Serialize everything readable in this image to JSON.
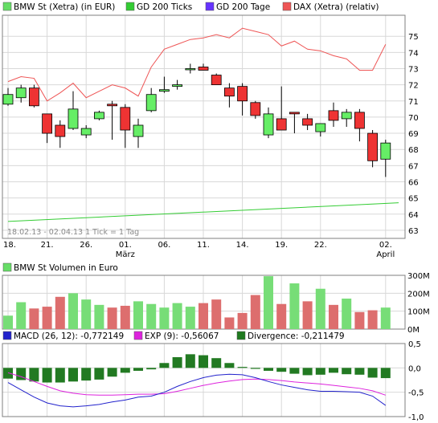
{
  "legend_top": [
    {
      "label": "BMW St (Xetra) (in EUR)",
      "color": "#66dd66"
    },
    {
      "label": "GD 200 Ticks",
      "color": "#33cc33"
    },
    {
      "label": "GD 200 Tage",
      "color": "#6633ff"
    },
    {
      "label": "DAX (Xetra) (relativ)",
      "color": "#ee5555"
    }
  ],
  "legend_volume": {
    "label": "BMW St Volumen in Euro",
    "color": "#66dd66"
  },
  "legend_macd": [
    {
      "label": "MACD (26, 12): -0,772149",
      "color": "#2222cc"
    },
    {
      "label": "EXP (9): -0,56067",
      "color": "#dd22dd"
    },
    {
      "label": "Divergence: -0,211479",
      "color": "#1f7a1f"
    }
  ],
  "range_note": "18.02.13 - 02.04.13   1 Tick = 1 Tag",
  "colors": {
    "up": "#66ee66",
    "down": "#ee3333",
    "volume_up": "#77dd77",
    "volume_down": "#dd6e6e",
    "gd200": "#33cc33",
    "dax": "#ee5555",
    "macd": "#2222cc",
    "exp": "#dd22dd",
    "divergence": "#227a22",
    "grid": "#d8d8d8"
  },
  "chart_data": [
    {
      "type": "candlestick",
      "title": "BMW St (Xetra) (in EUR)",
      "x_tick_labels": [
        {
          "i": 0,
          "label": "18."
        },
        {
          "i": 3,
          "label": "21."
        },
        {
          "i": 6,
          "label": "26."
        },
        {
          "i": 9,
          "label": "01.",
          "sub": "März"
        },
        {
          "i": 12,
          "label": "06."
        },
        {
          "i": 15,
          "label": "11."
        },
        {
          "i": 18,
          "label": "14."
        },
        {
          "i": 21,
          "label": "19."
        },
        {
          "i": 24,
          "label": "22."
        },
        {
          "i": 29,
          "label": "02.",
          "sub": "April"
        }
      ],
      "ylim": [
        62.5,
        76.3
      ],
      "yticks": [
        63,
        64,
        65,
        66,
        67,
        68,
        69,
        70,
        71,
        72,
        73,
        74,
        75
      ],
      "grid": true,
      "candles": [
        {
          "o": 70.8,
          "h": 71.8,
          "l": 70.7,
          "c": 71.4
        },
        {
          "o": 71.2,
          "h": 72.0,
          "l": 70.9,
          "c": 71.8
        },
        {
          "o": 71.8,
          "h": 72.0,
          "l": 70.6,
          "c": 70.7
        },
        {
          "o": 70.2,
          "h": 70.2,
          "l": 68.4,
          "c": 69.0
        },
        {
          "o": 69.5,
          "h": 69.8,
          "l": 68.1,
          "c": 68.8
        },
        {
          "o": 69.3,
          "h": 71.6,
          "l": 69.2,
          "c": 70.5
        },
        {
          "o": 68.9,
          "h": 69.5,
          "l": 68.7,
          "c": 69.3
        },
        {
          "o": 69.9,
          "h": 70.4,
          "l": 69.8,
          "c": 70.3
        },
        {
          "o": 70.8,
          "h": 71.0,
          "l": 68.6,
          "c": 70.7
        },
        {
          "o": 70.6,
          "h": 70.8,
          "l": 68.1,
          "c": 69.2
        },
        {
          "o": 68.8,
          "h": 69.9,
          "l": 68.1,
          "c": 69.5
        },
        {
          "o": 70.4,
          "h": 71.8,
          "l": 70.3,
          "c": 71.4
        },
        {
          "o": 71.6,
          "h": 72.5,
          "l": 71.5,
          "c": 71.7
        },
        {
          "o": 71.9,
          "h": 72.3,
          "l": 71.7,
          "c": 72.0
        },
        {
          "o": 73.0,
          "h": 73.3,
          "l": 72.7,
          "c": 73.0
        },
        {
          "o": 73.1,
          "h": 73.3,
          "l": 72.9,
          "c": 72.9
        },
        {
          "o": 72.6,
          "h": 72.7,
          "l": 72.0,
          "c": 72.0
        },
        {
          "o": 71.8,
          "h": 72.1,
          "l": 70.6,
          "c": 71.3
        },
        {
          "o": 71.9,
          "h": 72.1,
          "l": 70.1,
          "c": 71.0
        },
        {
          "o": 70.9,
          "h": 71.0,
          "l": 69.9,
          "c": 70.1
        },
        {
          "o": 68.9,
          "h": 70.6,
          "l": 68.7,
          "c": 70.2
        },
        {
          "o": 69.9,
          "h": 71.9,
          "l": 69.2,
          "c": 69.2
        },
        {
          "o": 70.3,
          "h": 70.3,
          "l": 69.0,
          "c": 70.2
        },
        {
          "o": 69.9,
          "h": 70.2,
          "l": 69.2,
          "c": 69.5
        },
        {
          "o": 69.1,
          "h": 69.6,
          "l": 68.8,
          "c": 69.6
        },
        {
          "o": 70.4,
          "h": 70.9,
          "l": 69.4,
          "c": 69.8
        },
        {
          "o": 69.9,
          "h": 70.5,
          "l": 69.4,
          "c": 70.3
        },
        {
          "o": 70.3,
          "h": 70.5,
          "l": 68.5,
          "c": 69.3
        },
        {
          "o": 69.0,
          "h": 69.2,
          "l": 66.9,
          "c": 67.3
        },
        {
          "o": 67.4,
          "h": 68.6,
          "l": 66.3,
          "c": 68.4
        }
      ],
      "gd200": {
        "from": 63.55,
        "to": 64.7
      },
      "dax_relative": [
        72.2,
        72.5,
        72.4,
        71.0,
        71.5,
        72.1,
        71.2,
        71.6,
        72.0,
        71.8,
        71.3,
        73.1,
        74.2,
        74.5,
        74.8,
        74.9,
        75.1,
        74.9,
        75.5,
        75.3,
        75.1,
        74.4,
        74.7,
        74.2,
        74.1,
        73.8,
        73.6,
        72.9,
        72.9,
        74.5
      ]
    },
    {
      "type": "bar",
      "title": "BMW St Volumen in Euro",
      "ylim": [
        0,
        300
      ],
      "yticks": [
        {
          "v": 0,
          "label": "0M"
        },
        {
          "v": 100,
          "label": "100M"
        },
        {
          "v": 200,
          "label": "200M"
        },
        {
          "v": 300,
          "label": "300M"
        }
      ],
      "values": [
        75,
        150,
        115,
        125,
        180,
        200,
        165,
        135,
        120,
        130,
        155,
        140,
        120,
        145,
        125,
        145,
        165,
        65,
        90,
        190,
        295,
        140,
        255,
        155,
        225,
        135,
        170,
        95,
        105,
        120
      ],
      "up": [
        true,
        true,
        false,
        false,
        false,
        true,
        true,
        true,
        false,
        false,
        true,
        true,
        true,
        true,
        true,
        false,
        false,
        false,
        false,
        false,
        true,
        false,
        true,
        false,
        true,
        false,
        true,
        false,
        false,
        true
      ]
    },
    {
      "type": "macd",
      "ylim": [
        -1.0,
        0.5
      ],
      "yticks": [
        {
          "v": 0.5,
          "label": "0,5"
        },
        {
          "v": 0.0,
          "label": "0,0"
        },
        {
          "v": -0.5,
          "label": "-0,5"
        },
        {
          "v": -1.0,
          "label": "-1,0"
        }
      ],
      "divergence": [
        -0.22,
        -0.25,
        -0.28,
        -0.3,
        -0.3,
        -0.28,
        -0.26,
        -0.24,
        -0.18,
        -0.1,
        -0.06,
        -0.03,
        0.1,
        0.22,
        0.28,
        0.26,
        0.2,
        0.1,
        0.02,
        -0.02,
        -0.06,
        -0.08,
        -0.12,
        -0.15,
        -0.14,
        -0.1,
        -0.13,
        -0.14,
        -0.2,
        -0.21
      ],
      "macd": [
        -0.3,
        -0.45,
        -0.6,
        -0.72,
        -0.78,
        -0.8,
        -0.78,
        -0.75,
        -0.7,
        -0.66,
        -0.6,
        -0.58,
        -0.5,
        -0.38,
        -0.28,
        -0.2,
        -0.15,
        -0.13,
        -0.14,
        -0.2,
        -0.28,
        -0.35,
        -0.4,
        -0.45,
        -0.48,
        -0.48,
        -0.49,
        -0.5,
        -0.58,
        -0.77
      ],
      "exp": [
        -0.1,
        -0.18,
        -0.28,
        -0.38,
        -0.47,
        -0.52,
        -0.55,
        -0.56,
        -0.56,
        -0.55,
        -0.54,
        -0.54,
        -0.53,
        -0.48,
        -0.42,
        -0.36,
        -0.31,
        -0.27,
        -0.24,
        -0.23,
        -0.24,
        -0.26,
        -0.29,
        -0.31,
        -0.33,
        -0.36,
        -0.39,
        -0.42,
        -0.47,
        -0.56
      ]
    }
  ]
}
